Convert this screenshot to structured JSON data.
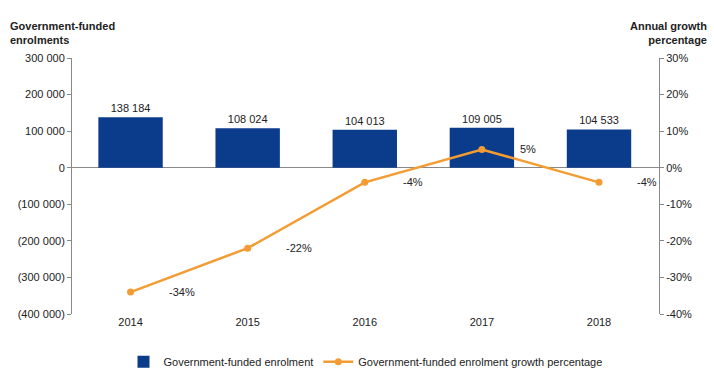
{
  "chart_data": {
    "type": "bar",
    "categories": [
      "2014",
      "2015",
      "2016",
      "2017",
      "2018"
    ],
    "y_label": "Government-funded\nenrolments",
    "y2_label": "Annual growth\npercentage",
    "series": [
      {
        "name": "Government-funded enrolment",
        "type": "bar",
        "color": "#0b3c8c",
        "values": [
          138184,
          108024,
          104013,
          109005,
          104533
        ],
        "value_labels": [
          "138 184",
          "108 024",
          "104 013",
          "109 005",
          "104 533"
        ]
      },
      {
        "name": "Government-funded enrolment growth percentage",
        "type": "line",
        "axis": "y2",
        "color": "#f39c34",
        "marker": "circle",
        "values": [
          -34,
          -22,
          -4,
          5,
          -4
        ],
        "value_labels": [
          "-34%",
          "-22%",
          "-4%",
          "5%",
          "-4%"
        ]
      }
    ],
    "ylim": [
      -400000,
      300000
    ],
    "yticks": [
      {
        "value": -400000,
        "label": "(400 000)"
      },
      {
        "value": -300000,
        "label": "(300 000)"
      },
      {
        "value": -200000,
        "label": "(200 000)"
      },
      {
        "value": -100000,
        "label": "(100 000)"
      },
      0,
      {
        "value": 100000,
        "label": "100 000"
      },
      {
        "value": 200000,
        "label": "200 000"
      },
      {
        "value": 300000,
        "label": "300 000"
      }
    ],
    "y2lim": [
      -40,
      30
    ],
    "y2ticks": [
      {
        "value": -40,
        "label": "-40%"
      },
      {
        "value": -30,
        "label": "-30%"
      },
      {
        "value": -20,
        "label": "-20%"
      },
      {
        "value": -10,
        "label": "-10%"
      },
      {
        "value": 0,
        "label": "0%"
      },
      {
        "value": 10,
        "label": "10%"
      },
      {
        "value": 20,
        "label": "20%"
      },
      {
        "value": 30,
        "label": "30%"
      }
    ],
    "data_labels": true,
    "legend": "bottom",
    "grid": false
  }
}
